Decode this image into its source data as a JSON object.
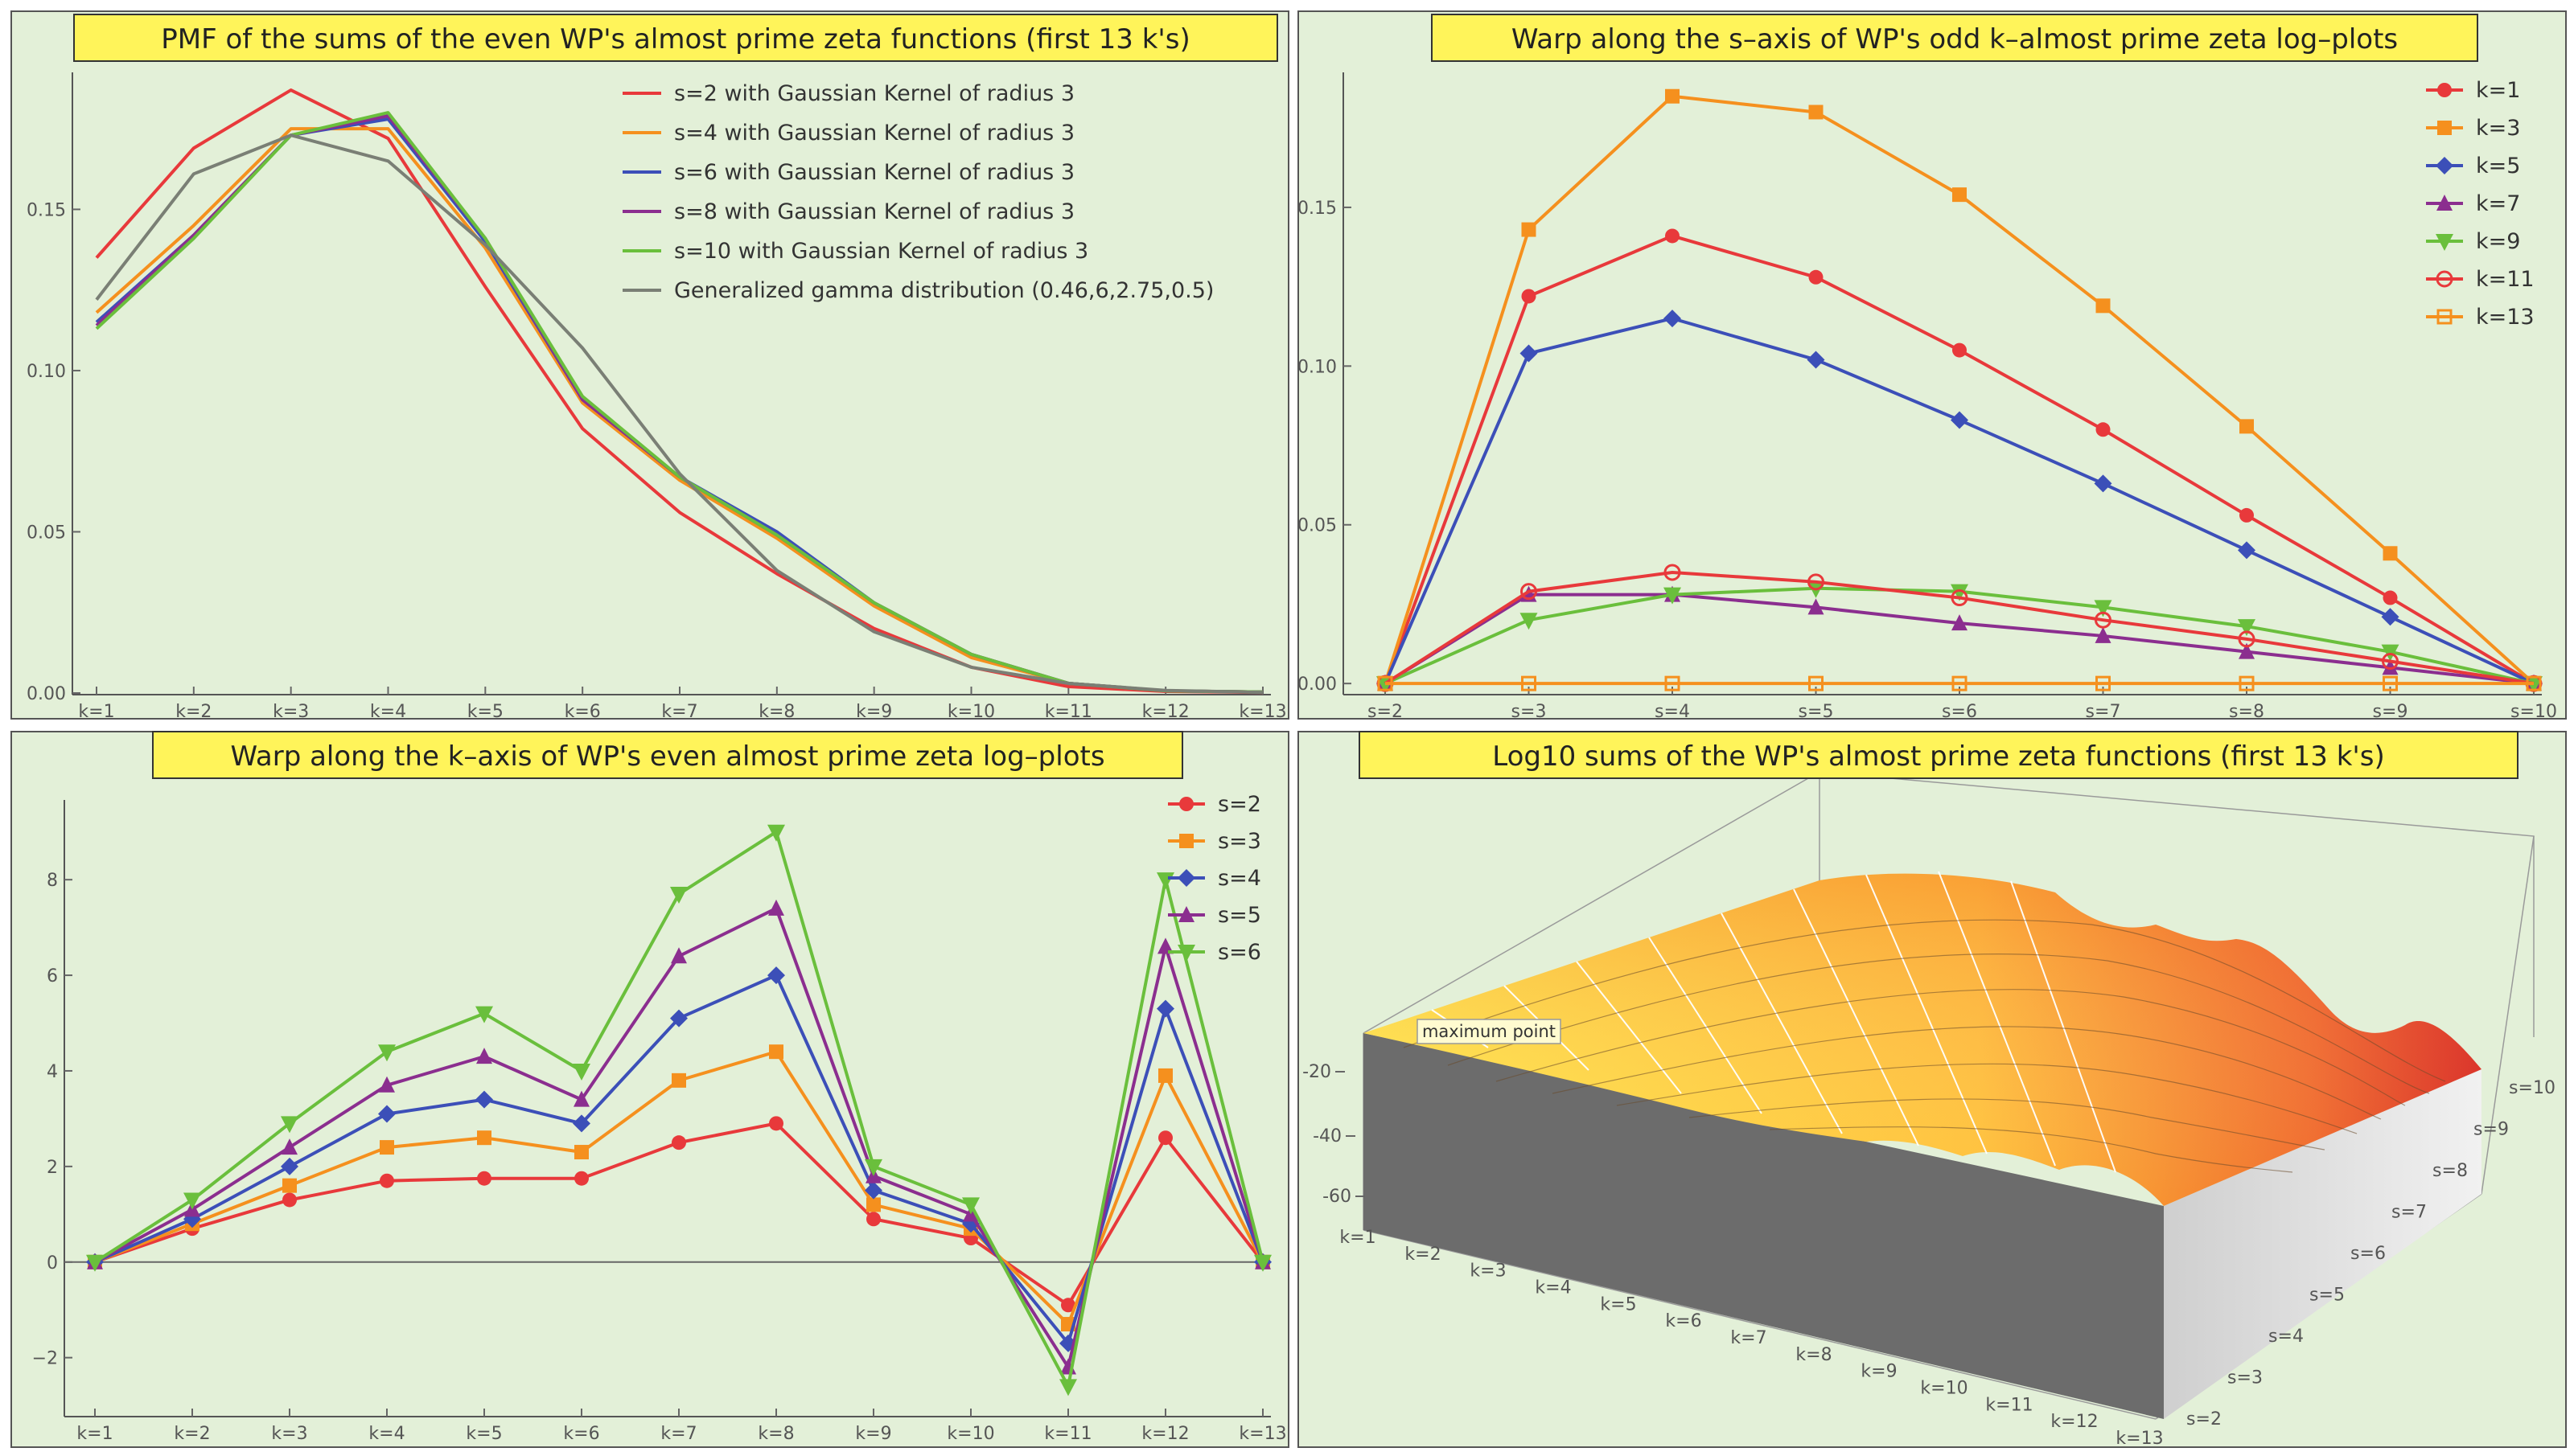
{
  "chart_data": [
    {
      "type": "line",
      "title": "PMF of the sums of the even WP's almost prime zeta functions (first 13 k's)",
      "categories": [
        "k=1",
        "k=2",
        "k=3",
        "k=4",
        "k=5",
        "k=6",
        "k=7",
        "k=8",
        "k=9",
        "k=10",
        "k=11",
        "k=12",
        "k=13"
      ],
      "ylim": [
        0,
        0.19
      ],
      "yticks": [
        0.0,
        0.05,
        0.1,
        0.15
      ],
      "ytick_labels": [
        "0.00",
        "0.05",
        "0.10",
        "0.15"
      ],
      "legend_position": "top-right",
      "series": [
        {
          "name": "s=2 with Gaussian Kernel of radius 3",
          "color": "#e8393b",
          "values": [
            0.135,
            0.169,
            0.187,
            0.172,
            0.126,
            0.082,
            0.056,
            0.037,
            0.02,
            0.008,
            0.002,
            0.0005,
            0.0002
          ]
        },
        {
          "name": "s=4 with Gaussian Kernel of radius 3",
          "color": "#f5901e",
          "values": [
            0.118,
            0.145,
            0.175,
            0.175,
            0.138,
            0.09,
            0.066,
            0.048,
            0.027,
            0.011,
            0.003,
            0.0007,
            0.0003
          ]
        },
        {
          "name": "s=6 with Gaussian Kernel of radius 3",
          "color": "#3c4fb8",
          "values": [
            0.115,
            0.142,
            0.173,
            0.178,
            0.14,
            0.091,
            0.067,
            0.05,
            0.028,
            0.012,
            0.003,
            0.0007,
            0.0003
          ]
        },
        {
          "name": "s=8 with Gaussian Kernel of radius 3",
          "color": "#8b2e8f",
          "values": [
            0.114,
            0.142,
            0.173,
            0.179,
            0.141,
            0.091,
            0.067,
            0.049,
            0.028,
            0.012,
            0.003,
            0.0007,
            0.0003
          ]
        },
        {
          "name": "s=10 with Gaussian Kernel of radius 3",
          "color": "#6abf3c",
          "values": [
            0.113,
            0.141,
            0.173,
            0.18,
            0.141,
            0.092,
            0.067,
            0.049,
            0.028,
            0.012,
            0.003,
            0.0007,
            0.0003
          ]
        },
        {
          "name": "Generalized gamma distribution (0.46,6,2.75,0.5)",
          "color": "#7a7f75",
          "values": [
            0.122,
            0.161,
            0.173,
            0.165,
            0.139,
            0.107,
            0.068,
            0.038,
            0.019,
            0.008,
            0.003,
            0.0008,
            0.0002
          ]
        }
      ]
    },
    {
      "type": "line",
      "title": "Warp along the s–axis of WP's odd k–almost prime zeta log–plots",
      "categories": [
        "s=2",
        "s=3",
        "s=4",
        "s=5",
        "s=6",
        "s=7",
        "s=8",
        "s=9",
        "s=10"
      ],
      "ylim": [
        -0.003,
        0.19
      ],
      "yticks": [
        0.0,
        0.05,
        0.1,
        0.15
      ],
      "ytick_labels": [
        "0.00",
        "0.05",
        "0.10",
        "0.15"
      ],
      "legend_position": "top-right",
      "series": [
        {
          "name": "k=1",
          "color": "#e8393b",
          "marker": "circle",
          "values": [
            0.0,
            0.122,
            0.141,
            0.128,
            0.105,
            0.08,
            0.053,
            0.027,
            0.0
          ]
        },
        {
          "name": "k=3",
          "color": "#f5901e",
          "marker": "square",
          "values": [
            0.0,
            0.143,
            0.185,
            0.18,
            0.154,
            0.119,
            0.081,
            0.041,
            0.0
          ]
        },
        {
          "name": "k=5",
          "color": "#3c4fb8",
          "marker": "diamond",
          "values": [
            0.0,
            0.104,
            0.115,
            0.102,
            0.083,
            0.063,
            0.042,
            0.021,
            0.0
          ]
        },
        {
          "name": "k=7",
          "color": "#8b2e8f",
          "marker": "triangle-up",
          "values": [
            0.0,
            0.028,
            0.028,
            0.024,
            0.019,
            0.015,
            0.01,
            0.005,
            0.0
          ]
        },
        {
          "name": "k=9",
          "color": "#6abf3c",
          "marker": "triangle-down",
          "values": [
            0.0,
            0.02,
            0.028,
            0.03,
            0.029,
            0.024,
            0.018,
            0.01,
            0.0
          ]
        },
        {
          "name": "k=11",
          "color": "#e8393b",
          "marker": "circle-open",
          "values": [
            0.0,
            0.029,
            0.035,
            0.032,
            0.027,
            0.02,
            0.014,
            0.007,
            0.0
          ]
        },
        {
          "name": "k=13",
          "color": "#f5901e",
          "marker": "square-open",
          "values": [
            0.0,
            0.0,
            0.0,
            0.0,
            0.0,
            0.0,
            0.0,
            0.0,
            0.0
          ]
        }
      ]
    },
    {
      "type": "line",
      "title": "Warp along the k–axis of WP's even almost prime zeta log–plots",
      "categories": [
        "k=1",
        "k=2",
        "k=3",
        "k=4",
        "k=5",
        "k=6",
        "k=7",
        "k=8",
        "k=9",
        "k=10",
        "k=11",
        "k=12",
        "k=13"
      ],
      "ylim": [
        -3.2,
        9.5
      ],
      "yticks": [
        -2,
        0,
        2,
        4,
        6,
        8
      ],
      "ytick_labels": [
        "−2",
        "0",
        "2",
        "4",
        "6",
        "8"
      ],
      "legend_position": "top-right",
      "series": [
        {
          "name": "s=2",
          "color": "#e8393b",
          "marker": "circle",
          "values": [
            0,
            0.7,
            1.3,
            1.7,
            1.75,
            1.75,
            2.5,
            2.9,
            0.9,
            0.5,
            -0.9,
            2.6,
            0
          ]
        },
        {
          "name": "s=3",
          "color": "#f5901e",
          "marker": "square",
          "values": [
            0,
            0.8,
            1.6,
            2.4,
            2.6,
            2.3,
            3.8,
            4.4,
            1.2,
            0.7,
            -1.3,
            3.9,
            0
          ]
        },
        {
          "name": "s=4",
          "color": "#3c4fb8",
          "marker": "diamond",
          "values": [
            0,
            0.9,
            2.0,
            3.1,
            3.4,
            2.9,
            5.1,
            6.0,
            1.5,
            0.8,
            -1.7,
            5.3,
            0
          ]
        },
        {
          "name": "s=5",
          "color": "#8b2e8f",
          "marker": "triangle-up",
          "values": [
            0,
            1.1,
            2.4,
            3.7,
            4.3,
            3.4,
            6.4,
            7.4,
            1.8,
            1.0,
            -2.2,
            6.6,
            0
          ]
        },
        {
          "name": "s=6",
          "color": "#6abf3c",
          "marker": "triangle-down",
          "values": [
            0,
            1.3,
            2.9,
            4.4,
            5.2,
            4.0,
            7.7,
            9.0,
            2.0,
            1.2,
            -2.6,
            8.0,
            0
          ]
        }
      ]
    },
    {
      "type": "surface",
      "title": "Log10 sums of the WP's almost prime zeta functions (first 13 k's)",
      "x_labels": [
        "k=1",
        "k=2",
        "k=3",
        "k=4",
        "k=5",
        "k=6",
        "k=7",
        "k=8",
        "k=9",
        "k=10",
        "k=11",
        "k=12",
        "k=13"
      ],
      "y_labels": [
        "s=2",
        "s=3",
        "s=4",
        "s=5",
        "s=6",
        "s=7",
        "s=8",
        "s=9",
        "s=10"
      ],
      "z_ticks": [
        "-20",
        "-40",
        "-60"
      ],
      "annotation": "maximum point"
    }
  ],
  "colors": {
    "panel_background": "#e3f0d8",
    "title_background": "#fff45a"
  }
}
